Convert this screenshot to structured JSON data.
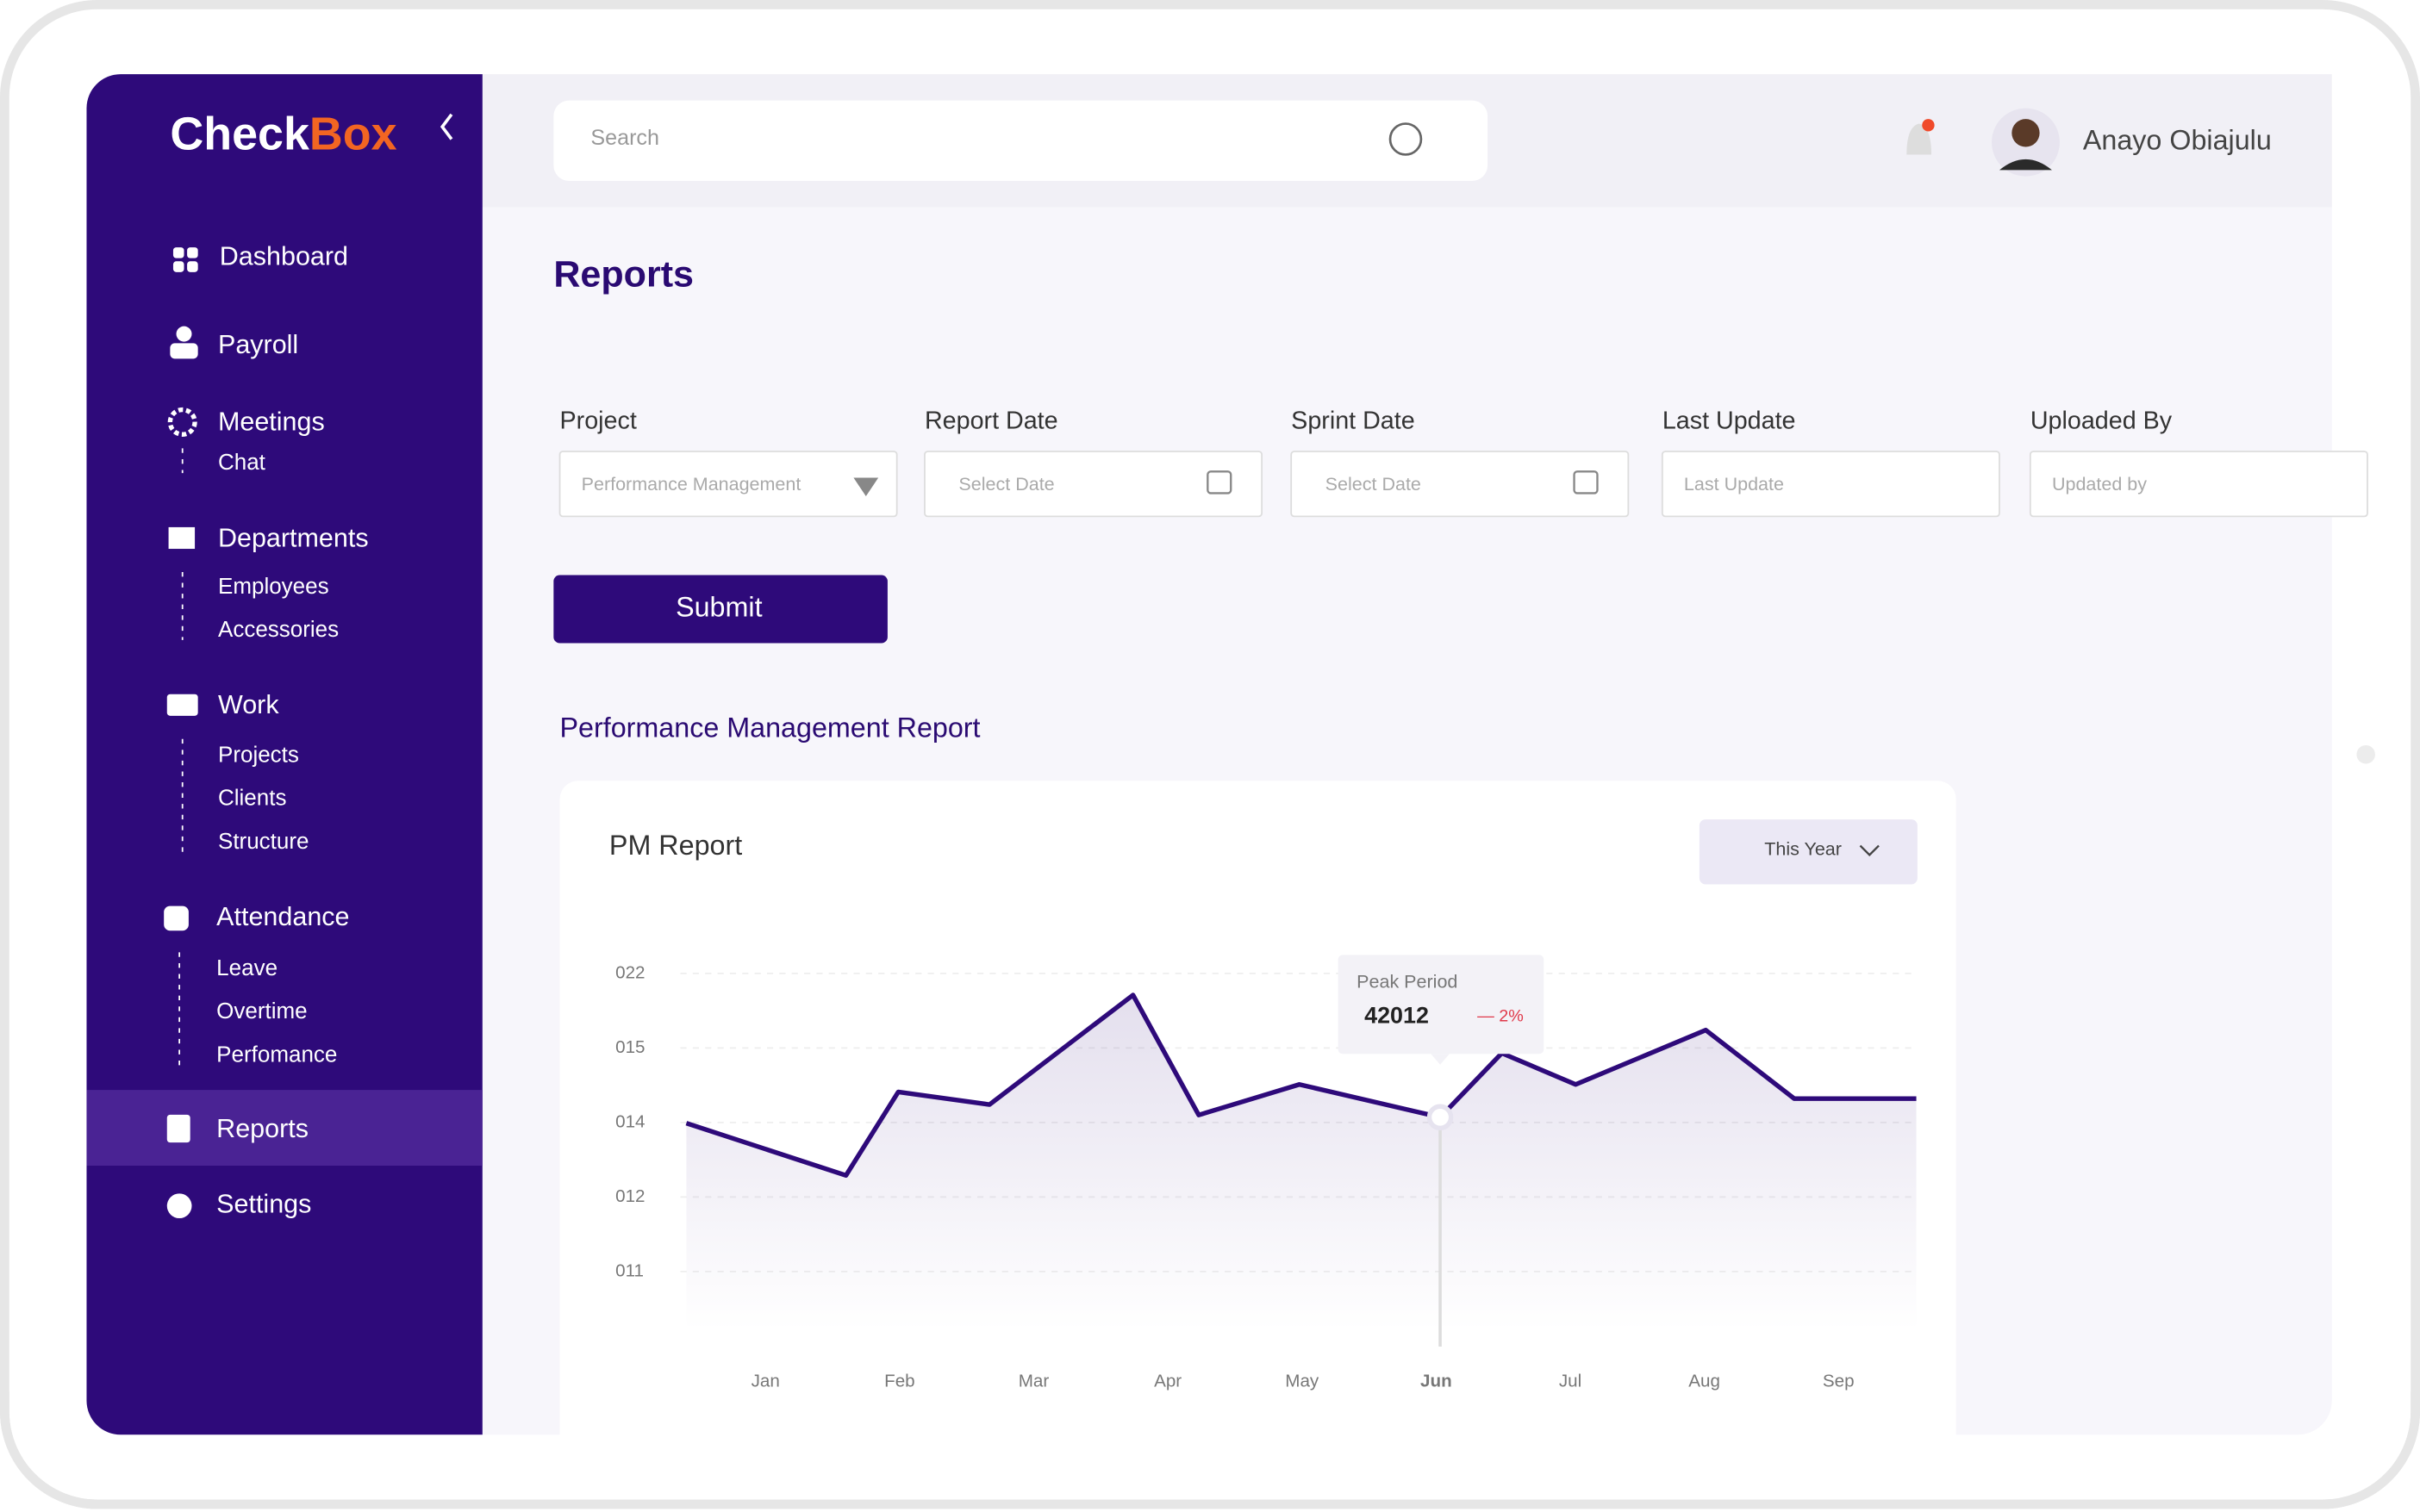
{
  "sidebar": {
    "logo": {
      "part1": "Check",
      "part2": "Box"
    },
    "nav": [
      {
        "label": "Dashboard"
      },
      {
        "label": "Payroll"
      },
      {
        "label": "Meetings",
        "children": [
          "Chat"
        ]
      },
      {
        "label": "Departments",
        "children": [
          "Employees",
          "Accessories"
        ]
      },
      {
        "label": "Work",
        "children": [
          "Projects",
          "Clients",
          "Structure"
        ]
      },
      {
        "label": "Attendance",
        "children": [
          "Leave",
          "Overtime",
          "Perfomance"
        ]
      },
      {
        "label": "Reports"
      },
      {
        "label": "Settings"
      }
    ]
  },
  "header": {
    "search_placeholder": "Search",
    "user_name": "Anayo Obiajulu"
  },
  "page": {
    "title": "Reports",
    "fields": [
      {
        "label": "Project",
        "placeholder": "Performance Management"
      },
      {
        "label": "Report Date",
        "placeholder": "Select Date"
      },
      {
        "label": "Sprint Date",
        "placeholder": "Select Date"
      },
      {
        "label": "Last Update",
        "placeholder": "Last Update"
      },
      {
        "label": "Uploaded By",
        "placeholder": "Updated by"
      }
    ],
    "submit": "Submit",
    "section_title": "Performance Management Report"
  },
  "chart_data": {
    "type": "line",
    "title": "PM Report",
    "period": "This Year",
    "color": "#2e0a7a",
    "x": [
      -0.59,
      0.6,
      0.99,
      1.67,
      2.74,
      3.23,
      3.98,
      5.03,
      5.49,
      6.04,
      7.01,
      7.67,
      8.58
    ],
    "values": [
      1.99,
      1.29,
      2.41,
      2.24,
      3.71,
      2.1,
      2.51,
      2.07,
      2.93,
      2.51,
      3.24,
      2.32,
      2.32
    ],
    "xlim": [
      -0.6,
      8.6
    ],
    "xticks": [
      {
        "value": 0,
        "label": "Jan"
      },
      {
        "value": 1,
        "label": "Feb"
      },
      {
        "value": 2,
        "label": "Mar"
      },
      {
        "value": 3,
        "label": "Apr"
      },
      {
        "value": 4,
        "label": "May"
      },
      {
        "value": 5,
        "label": "Jun"
      },
      {
        "value": 6,
        "label": "Jul"
      },
      {
        "value": 7,
        "label": "Aug"
      },
      {
        "value": 8,
        "label": "Sep"
      }
    ],
    "ylim": [
      -0.8,
      4.2
    ],
    "yticks": [
      {
        "value": 4,
        "label": "022"
      },
      {
        "value": 3,
        "label": "015"
      },
      {
        "value": 2,
        "label": "014"
      },
      {
        "value": 1,
        "label": "012"
      },
      {
        "value": 0,
        "label": "011"
      }
    ],
    "grid": true,
    "highlight": 7,
    "tooltip": {
      "title": "Peak Period",
      "value": 42012,
      "change": "— 2%"
    }
  }
}
